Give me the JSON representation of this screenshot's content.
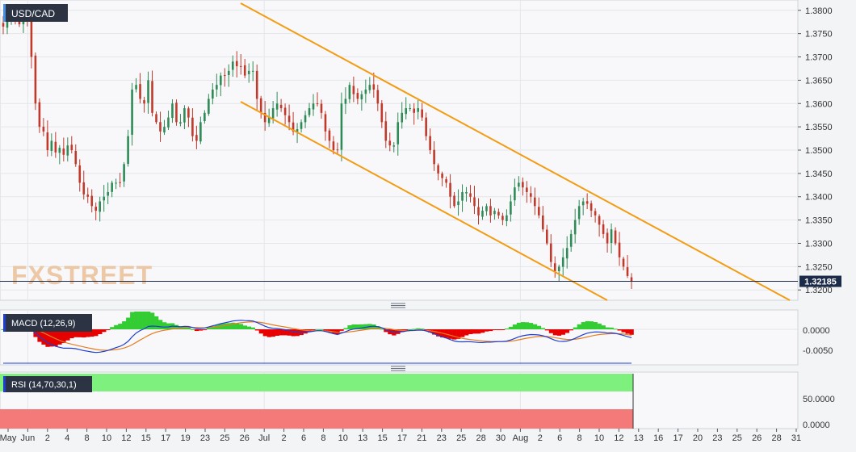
{
  "chart_data": {
    "type": "candlestick",
    "symbol": "USD/CAD",
    "watermark": "FXSTREET",
    "last_price_label": "1.32185",
    "last_price": 1.32185,
    "price_axis": {
      "ylim": [
        1.319,
        1.381
      ],
      "ticks": [
        "1.3800",
        "1.3750",
        "1.3700",
        "1.3650",
        "1.3600",
        "1.3550",
        "1.3500",
        "1.3450",
        "1.3400",
        "1.3350",
        "1.3300",
        "1.3250",
        "1.3200"
      ]
    },
    "x_axis": {
      "ticks": [
        "May",
        "Jun",
        "2",
        "4",
        "8",
        "10",
        "12",
        "15",
        "17",
        "19",
        "23",
        "25",
        "26",
        "Jul",
        "2",
        "6",
        "8",
        "10",
        "13",
        "15",
        "17",
        "21",
        "23",
        "25",
        "28",
        "30",
        "Aug",
        "2",
        "6",
        "8",
        "10",
        "12",
        "13",
        "16",
        "17",
        "20",
        "23",
        "25",
        "26",
        "28",
        "31"
      ]
    },
    "candles_close": [
      1.3765,
      1.3792,
      1.38,
      1.378,
      1.377,
      1.3792,
      1.378,
      1.37,
      1.36,
      1.355,
      1.354,
      1.35,
      1.352,
      1.3495,
      1.3505,
      1.349,
      1.351,
      1.35,
      1.347,
      1.343,
      1.3405,
      1.34,
      1.338,
      1.337,
      1.339,
      1.34,
      1.341,
      1.343,
      1.343,
      1.343,
      1.347,
      1.353,
      1.363,
      1.364,
      1.361,
      1.36,
      1.365,
      1.358,
      1.356,
      1.354,
      1.355,
      1.357,
      1.36,
      1.356,
      1.356,
      1.359,
      1.357,
      1.353,
      1.352,
      1.356,
      1.358,
      1.361,
      1.363,
      1.364,
      1.366,
      1.366,
      1.367,
      1.369,
      1.368,
      1.368,
      1.366,
      1.367,
      1.367,
      1.361,
      1.358,
      1.356,
      1.357,
      1.359,
      1.36,
      1.359,
      1.3575,
      1.356,
      1.354,
      1.3545,
      1.356,
      1.3575,
      1.359,
      1.36,
      1.36,
      1.358,
      1.354,
      1.352,
      1.35,
      1.35,
      1.36,
      1.361,
      1.364,
      1.362,
      1.361,
      1.362,
      1.363,
      1.364,
      1.363,
      1.36,
      1.356,
      1.352,
      1.351,
      1.351,
      1.356,
      1.358,
      1.359,
      1.359,
      1.358,
      1.359,
      1.357,
      1.353,
      1.35,
      1.347,
      1.345,
      1.344,
      1.343,
      1.34,
      1.338,
      1.339,
      1.341,
      1.341,
      1.34,
      1.338,
      1.336,
      1.337,
      1.338,
      1.336,
      1.337,
      1.336,
      1.335,
      1.336,
      1.339,
      1.342,
      1.343,
      1.342,
      1.341,
      1.34,
      1.338,
      1.336,
      1.333,
      1.33,
      1.326,
      1.324,
      1.325,
      1.327,
      1.329,
      1.332,
      1.335,
      1.338,
      1.339,
      1.3385,
      1.337,
      1.336,
      1.334,
      1.332,
      1.33,
      1.333,
      1.33,
      1.327,
      1.325,
      1.323,
      1.32185
    ],
    "macd": {
      "label": "MACD (12,26,9)",
      "ticks": [
        "0.0000",
        "-0.0050"
      ]
    },
    "rsi": {
      "label": "RSI (14,70,30,1)",
      "ticks": [
        "50.0000",
        "0.0000"
      ]
    },
    "colors": {
      "up": "#2e8b57",
      "down": "#c0392b",
      "trend": "#f39c12",
      "macd_line": "#1f3fd1",
      "signal_line": "#e67e22",
      "hist_up": "#33cc33",
      "hist_down": "#e60000",
      "rsi_line": "#1f3fd1",
      "rsi_upper": "#7ef07e",
      "rsi_lower": "#f47a7a",
      "price_tag": "#1c2b4a"
    }
  }
}
